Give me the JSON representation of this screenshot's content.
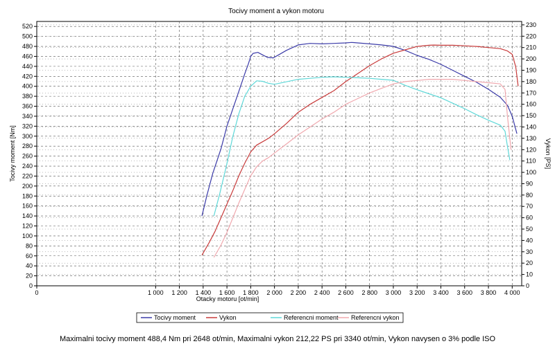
{
  "chart_data": {
    "type": "line",
    "title": "Tocivy moment a vykon motoru",
    "xlabel": "Otacky motoru [ot/min]",
    "ylabel_left": "Tocivy moment [Nm]",
    "ylabel_right": "Vykon [PS]",
    "xlim": [
      0,
      4080
    ],
    "ylim_left": [
      0,
      530
    ],
    "ylim_right": [
      0,
      233
    ],
    "x_ticks": [
      0,
      1000,
      1200,
      1400,
      1600,
      1800,
      2000,
      2200,
      2400,
      2600,
      2800,
      3000,
      3200,
      3400,
      3600,
      3800,
      4000
    ],
    "x_tick_labels": [
      "0",
      "1 000",
      "1 200",
      "1 400",
      "1 600",
      "1 800",
      "2 000",
      "2 200",
      "2 400",
      "2 600",
      "2 800",
      "3 000",
      "3 200",
      "3 400",
      "3 600",
      "3 800",
      "4 000"
    ],
    "y_left_ticks": [
      0,
      20,
      40,
      60,
      80,
      100,
      120,
      140,
      160,
      180,
      200,
      220,
      240,
      260,
      280,
      300,
      320,
      340,
      360,
      380,
      400,
      420,
      440,
      460,
      480,
      500,
      520
    ],
    "y_right_ticks": [
      0,
      10,
      20,
      30,
      40,
      50,
      60,
      70,
      80,
      90,
      100,
      110,
      120,
      130,
      140,
      150,
      160,
      170,
      180,
      190,
      200,
      210,
      220,
      230
    ],
    "grid": true,
    "series": [
      {
        "name": "Tocivy moment",
        "axis": "left",
        "color": "#3a3aa8",
        "points": [
          [
            1390,
            140
          ],
          [
            1430,
            180
          ],
          [
            1480,
            225
          ],
          [
            1550,
            275
          ],
          [
            1600,
            320
          ],
          [
            1650,
            355
          ],
          [
            1700,
            390
          ],
          [
            1750,
            425
          ],
          [
            1780,
            445
          ],
          [
            1800,
            460
          ],
          [
            1820,
            466
          ],
          [
            1860,
            468
          ],
          [
            1900,
            463
          ],
          [
            1940,
            458
          ],
          [
            1990,
            457
          ],
          [
            2050,
            465
          ],
          [
            2100,
            472
          ],
          [
            2200,
            483
          ],
          [
            2300,
            486
          ],
          [
            2400,
            485
          ],
          [
            2500,
            486
          ],
          [
            2600,
            487
          ],
          [
            2648,
            488
          ],
          [
            2700,
            487
          ],
          [
            2800,
            485
          ],
          [
            2900,
            483
          ],
          [
            3000,
            480
          ],
          [
            3100,
            472
          ],
          [
            3200,
            462
          ],
          [
            3300,
            454
          ],
          [
            3400,
            444
          ],
          [
            3500,
            432
          ],
          [
            3600,
            420
          ],
          [
            3700,
            408
          ],
          [
            3800,
            394
          ],
          [
            3900,
            378
          ],
          [
            3960,
            362
          ],
          [
            4000,
            340
          ],
          [
            4040,
            305
          ]
        ]
      },
      {
        "name": "Vykon",
        "axis": "right",
        "color": "#c83a3a",
        "points": [
          [
            1390,
            27
          ],
          [
            1450,
            38
          ],
          [
            1500,
            48
          ],
          [
            1550,
            60
          ],
          [
            1600,
            72
          ],
          [
            1650,
            84
          ],
          [
            1700,
            97
          ],
          [
            1750,
            108
          ],
          [
            1800,
            118
          ],
          [
            1850,
            124
          ],
          [
            1900,
            127
          ],
          [
            1950,
            130
          ],
          [
            2000,
            134
          ],
          [
            2100,
            143
          ],
          [
            2200,
            153
          ],
          [
            2300,
            160
          ],
          [
            2400,
            166
          ],
          [
            2500,
            172
          ],
          [
            2600,
            180
          ],
          [
            2700,
            187
          ],
          [
            2800,
            194
          ],
          [
            2900,
            200
          ],
          [
            3000,
            205
          ],
          [
            3100,
            208
          ],
          [
            3200,
            211
          ],
          [
            3300,
            212
          ],
          [
            3340,
            212.2
          ],
          [
            3400,
            212
          ],
          [
            3500,
            212
          ],
          [
            3600,
            211.5
          ],
          [
            3700,
            211
          ],
          [
            3800,
            210
          ],
          [
            3900,
            209
          ],
          [
            3960,
            207
          ],
          [
            4000,
            204
          ],
          [
            4030,
            193
          ],
          [
            4050,
            176
          ]
        ]
      },
      {
        "name": "Referencni moment",
        "axis": "left",
        "color": "#5ed8d8",
        "points": [
          [
            1490,
            140
          ],
          [
            1540,
            185
          ],
          [
            1600,
            245
          ],
          [
            1650,
            300
          ],
          [
            1700,
            345
          ],
          [
            1750,
            380
          ],
          [
            1800,
            400
          ],
          [
            1850,
            411
          ],
          [
            1900,
            410
          ],
          [
            1950,
            406
          ],
          [
            2000,
            404
          ],
          [
            2100,
            409
          ],
          [
            2200,
            414
          ],
          [
            2300,
            416
          ],
          [
            2400,
            418
          ],
          [
            2500,
            419
          ],
          [
            2600,
            418
          ],
          [
            2700,
            417
          ],
          [
            2800,
            416
          ],
          [
            2900,
            414
          ],
          [
            3000,
            412
          ],
          [
            3100,
            402
          ],
          [
            3200,
            393
          ],
          [
            3300,
            385
          ],
          [
            3400,
            377
          ],
          [
            3500,
            366
          ],
          [
            3600,
            355
          ],
          [
            3700,
            343
          ],
          [
            3800,
            332
          ],
          [
            3900,
            322
          ],
          [
            3940,
            310
          ],
          [
            3960,
            280
          ],
          [
            3980,
            252
          ]
        ]
      },
      {
        "name": "Referencni vykon",
        "axis": "right",
        "color": "#f0a8ae",
        "points": [
          [
            1490,
            25
          ],
          [
            1550,
            36
          ],
          [
            1600,
            47
          ],
          [
            1650,
            60
          ],
          [
            1700,
            73
          ],
          [
            1750,
            85
          ],
          [
            1800,
            97
          ],
          [
            1850,
            105
          ],
          [
            1900,
            110
          ],
          [
            1950,
            113
          ],
          [
            2000,
            117
          ],
          [
            2100,
            125
          ],
          [
            2200,
            133
          ],
          [
            2300,
            140
          ],
          [
            2400,
            147
          ],
          [
            2500,
            153
          ],
          [
            2600,
            160
          ],
          [
            2700,
            165
          ],
          [
            2800,
            170
          ],
          [
            2900,
            174
          ],
          [
            3000,
            178
          ],
          [
            3100,
            180
          ],
          [
            3200,
            181
          ],
          [
            3300,
            182
          ],
          [
            3400,
            182
          ],
          [
            3500,
            182
          ],
          [
            3600,
            181
          ],
          [
            3700,
            180
          ],
          [
            3800,
            179
          ],
          [
            3900,
            178
          ],
          [
            3940,
            173
          ],
          [
            3960,
            150
          ],
          [
            3990,
            120
          ]
        ]
      }
    ]
  },
  "summary": "Maximalni tocivy moment 488,4 Nm pri 2648 ot/min,  Maximalni vykon 212,22 PS pri 3340 ot/min,  Vykon navysen o 3% podle ISO"
}
